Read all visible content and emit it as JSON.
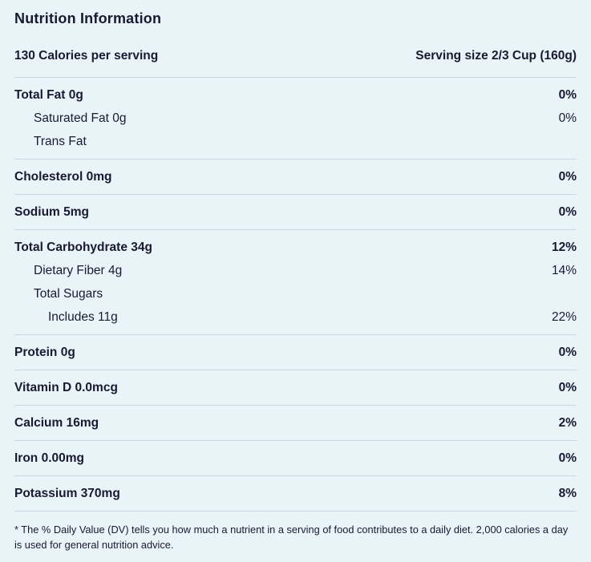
{
  "theme": {
    "background": "#e9f4f9",
    "text": "#191932",
    "divider": "#c6d8df"
  },
  "header": {
    "title": "Nutrition Information",
    "calories": "130 Calories per serving",
    "serving_size": "Serving size 2/3 Cup (160g)"
  },
  "nutrients": [
    {
      "label": "Total Fat 0g",
      "value": "0%",
      "emphasis": "bold",
      "indent": 0
    },
    {
      "label": "Saturated Fat 0g",
      "value": "0%",
      "emphasis": "normal",
      "indent": 1
    },
    {
      "label": "Trans Fat",
      "value": "",
      "emphasis": "normal",
      "indent": 1
    },
    {
      "label": "Cholesterol 0mg",
      "value": "0%",
      "emphasis": "bold",
      "indent": 0
    },
    {
      "label": "Sodium 5mg",
      "value": "0%",
      "emphasis": "bold",
      "indent": 0
    },
    {
      "label": "Total Carbohydrate 34g",
      "value": "12%",
      "emphasis": "bold",
      "indent": 0
    },
    {
      "label": "Dietary Fiber 4g",
      "value": "14%",
      "emphasis": "normal",
      "indent": 1
    },
    {
      "label": "Total Sugars",
      "value": "",
      "emphasis": "normal",
      "indent": 1
    },
    {
      "label": "Includes 11g",
      "value": "22%",
      "emphasis": "normal",
      "indent": 2
    },
    {
      "label": "Protein 0g",
      "value": "0%",
      "emphasis": "bold",
      "indent": 0
    },
    {
      "label": "Vitamin D 0.0mcg",
      "value": "0%",
      "emphasis": "bold",
      "indent": 0
    },
    {
      "label": "Calcium 16mg",
      "value": "2%",
      "emphasis": "bold",
      "indent": 0
    },
    {
      "label": "Iron 0.00mg",
      "value": "0%",
      "emphasis": "bold",
      "indent": 0
    },
    {
      "label": "Potassium 370mg",
      "value": "8%",
      "emphasis": "bold",
      "indent": 0
    }
  ],
  "footnote": "* The % Daily Value (DV) tells you how much a nutrient in a serving of food contributes to a daily diet. 2,000 calories a day is used for general nutrition advice."
}
